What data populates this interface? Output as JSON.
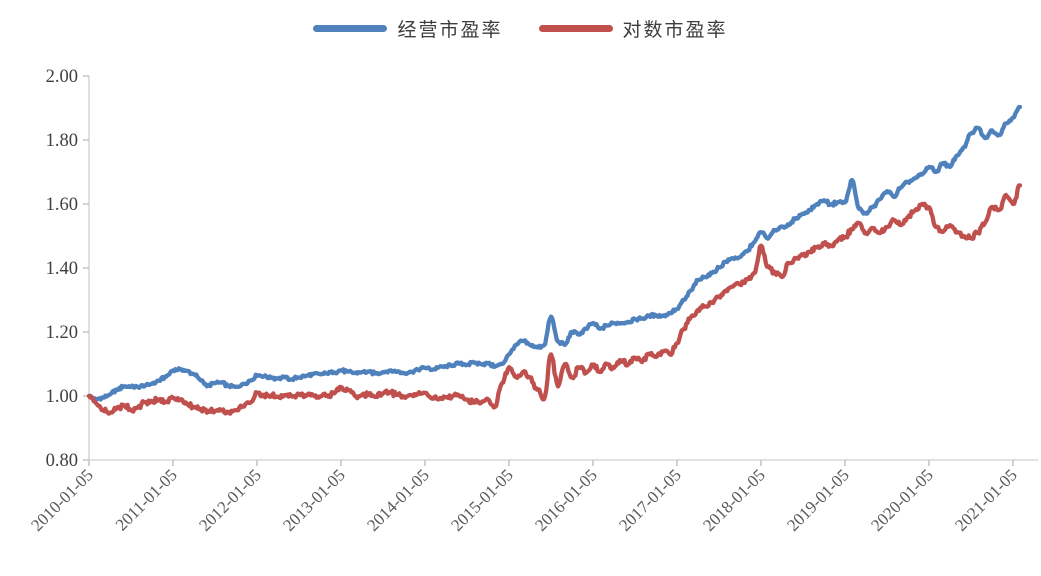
{
  "colors": {
    "series_blue": "#4F81BD",
    "series_red": "#C0504D",
    "axis_line": "#D9D9D9",
    "tick_mark": "#BFBFBF",
    "y_label": "#404040",
    "x_label": "#595959",
    "background": "#FFFFFF"
  },
  "chart_data": {
    "type": "line",
    "grid": false,
    "legend_position": "top-center",
    "x_axis": {
      "tick_labels": [
        "2010-01-05",
        "2011-01-05",
        "2012-01-05",
        "2013-01-05",
        "2014-01-05",
        "2015-01-05",
        "2016-01-05",
        "2017-01-05",
        "2018-01-05",
        "2019-01-05",
        "2020-01-05",
        "2021-01-05"
      ],
      "label_rotation_deg": -45
    },
    "y_axis": {
      "min": 0.8,
      "max": 2.0,
      "tick_step": 0.2,
      "tick_labels": [
        "0.80",
        "1.00",
        "1.20",
        "1.40",
        "1.60",
        "1.80",
        "2.00"
      ]
    },
    "x_months": [
      "2010-01",
      "2010-02",
      "2010-03",
      "2010-04",
      "2010-05",
      "2010-06",
      "2010-07",
      "2010-08",
      "2010-09",
      "2010-10",
      "2010-11",
      "2010-12",
      "2011-01",
      "2011-02",
      "2011-03",
      "2011-04",
      "2011-05",
      "2011-06",
      "2011-07",
      "2011-08",
      "2011-09",
      "2011-10",
      "2011-11",
      "2011-12",
      "2012-01",
      "2012-02",
      "2012-03",
      "2012-04",
      "2012-05",
      "2012-06",
      "2012-07",
      "2012-08",
      "2012-09",
      "2012-10",
      "2012-11",
      "2012-12",
      "2013-01",
      "2013-02",
      "2013-03",
      "2013-04",
      "2013-05",
      "2013-06",
      "2013-07",
      "2013-08",
      "2013-09",
      "2013-10",
      "2013-11",
      "2013-12",
      "2014-01",
      "2014-02",
      "2014-03",
      "2014-04",
      "2014-05",
      "2014-06",
      "2014-07",
      "2014-08",
      "2014-09",
      "2014-10",
      "2014-11",
      "2014-12",
      "2015-01",
      "2015-02",
      "2015-03",
      "2015-04",
      "2015-05",
      "2015-06",
      "2015-07",
      "2015-08",
      "2015-09",
      "2015-10",
      "2015-11",
      "2015-12",
      "2016-01",
      "2016-02",
      "2016-03",
      "2016-04",
      "2016-05",
      "2016-06",
      "2016-07",
      "2016-08",
      "2016-09",
      "2016-10",
      "2016-11",
      "2016-12",
      "2017-01",
      "2017-02",
      "2017-03",
      "2017-04",
      "2017-05",
      "2017-06",
      "2017-07",
      "2017-08",
      "2017-09",
      "2017-10",
      "2017-11",
      "2017-12",
      "2018-01",
      "2018-02",
      "2018-03",
      "2018-04",
      "2018-05",
      "2018-06",
      "2018-07",
      "2018-08",
      "2018-09",
      "2018-10",
      "2018-11",
      "2018-12",
      "2019-01",
      "2019-02",
      "2019-03",
      "2019-04",
      "2019-05",
      "2019-06",
      "2019-07",
      "2019-08",
      "2019-09",
      "2019-10",
      "2019-11",
      "2019-12",
      "2020-01",
      "2020-02",
      "2020-03",
      "2020-04",
      "2020-05",
      "2020-06",
      "2020-07",
      "2020-08",
      "2020-09",
      "2020-10",
      "2020-11",
      "2020-12",
      "2021-01",
      "2021-02"
    ],
    "series": [
      {
        "name": "经营市盈率",
        "color": "#4F81BD",
        "values": [
          1.0,
          0.99,
          0.995,
          1.005,
          1.02,
          1.03,
          1.03,
          1.028,
          1.032,
          1.038,
          1.048,
          1.06,
          1.08,
          1.085,
          1.078,
          1.068,
          1.048,
          1.032,
          1.04,
          1.042,
          1.03,
          1.028,
          1.038,
          1.048,
          1.065,
          1.062,
          1.058,
          1.055,
          1.058,
          1.052,
          1.058,
          1.063,
          1.068,
          1.068,
          1.07,
          1.074,
          1.08,
          1.076,
          1.072,
          1.075,
          1.076,
          1.07,
          1.075,
          1.08,
          1.076,
          1.072,
          1.076,
          1.082,
          1.088,
          1.082,
          1.09,
          1.092,
          1.096,
          1.102,
          1.098,
          1.104,
          1.1,
          1.102,
          1.092,
          1.1,
          1.13,
          1.16,
          1.172,
          1.16,
          1.152,
          1.158,
          1.248,
          1.17,
          1.16,
          1.2,
          1.192,
          1.21,
          1.228,
          1.21,
          1.22,
          1.228,
          1.228,
          1.232,
          1.24,
          1.242,
          1.25,
          1.252,
          1.25,
          1.26,
          1.272,
          1.3,
          1.33,
          1.362,
          1.372,
          1.384,
          1.402,
          1.42,
          1.43,
          1.434,
          1.452,
          1.48,
          1.512,
          1.492,
          1.518,
          1.53,
          1.534,
          1.556,
          1.57,
          1.582,
          1.6,
          1.612,
          1.598,
          1.606,
          1.605,
          1.675,
          1.585,
          1.57,
          1.59,
          1.615,
          1.64,
          1.622,
          1.652,
          1.668,
          1.68,
          1.692,
          1.716,
          1.7,
          1.728,
          1.716,
          1.752,
          1.778,
          1.82,
          1.838,
          1.806,
          1.83,
          1.816,
          1.852,
          1.87,
          1.903
        ]
      },
      {
        "name": "对数市盈率",
        "color": "#C0504D",
        "values": [
          1.0,
          0.978,
          0.956,
          0.947,
          0.963,
          0.972,
          0.956,
          0.966,
          0.981,
          0.984,
          0.988,
          0.981,
          0.994,
          0.988,
          0.975,
          0.966,
          0.956,
          0.95,
          0.953,
          0.956,
          0.947,
          0.956,
          0.968,
          0.978,
          1.01,
          1.0,
          1.002,
          0.998,
          1.003,
          0.998,
          1.005,
          1.0,
          1.003,
          0.998,
          1.002,
          1.008,
          1.028,
          1.018,
          1.0,
          1.003,
          1.006,
          0.998,
          1.008,
          1.012,
          1.003,
          0.998,
          1.003,
          1.008,
          1.01,
          0.992,
          0.99,
          0.996,
          1.0,
          0.998,
          0.988,
          0.983,
          0.978,
          0.99,
          0.966,
          1.04,
          1.09,
          1.06,
          1.075,
          1.058,
          1.02,
          0.99,
          1.13,
          1.03,
          1.1,
          1.058,
          1.088,
          1.072,
          1.098,
          1.075,
          1.1,
          1.088,
          1.11,
          1.098,
          1.12,
          1.106,
          1.132,
          1.122,
          1.138,
          1.13,
          1.165,
          1.21,
          1.247,
          1.269,
          1.28,
          1.291,
          1.31,
          1.33,
          1.342,
          1.348,
          1.365,
          1.384,
          1.47,
          1.403,
          1.384,
          1.372,
          1.415,
          1.43,
          1.44,
          1.45,
          1.465,
          1.478,
          1.47,
          1.488,
          1.497,
          1.52,
          1.54,
          1.509,
          1.525,
          1.509,
          1.528,
          1.55,
          1.534,
          1.559,
          1.58,
          1.6,
          1.59,
          1.528,
          1.513,
          1.534,
          1.513,
          1.5,
          1.494,
          1.51,
          1.541,
          1.591,
          1.581,
          1.628,
          1.6,
          1.658
        ]
      }
    ]
  }
}
